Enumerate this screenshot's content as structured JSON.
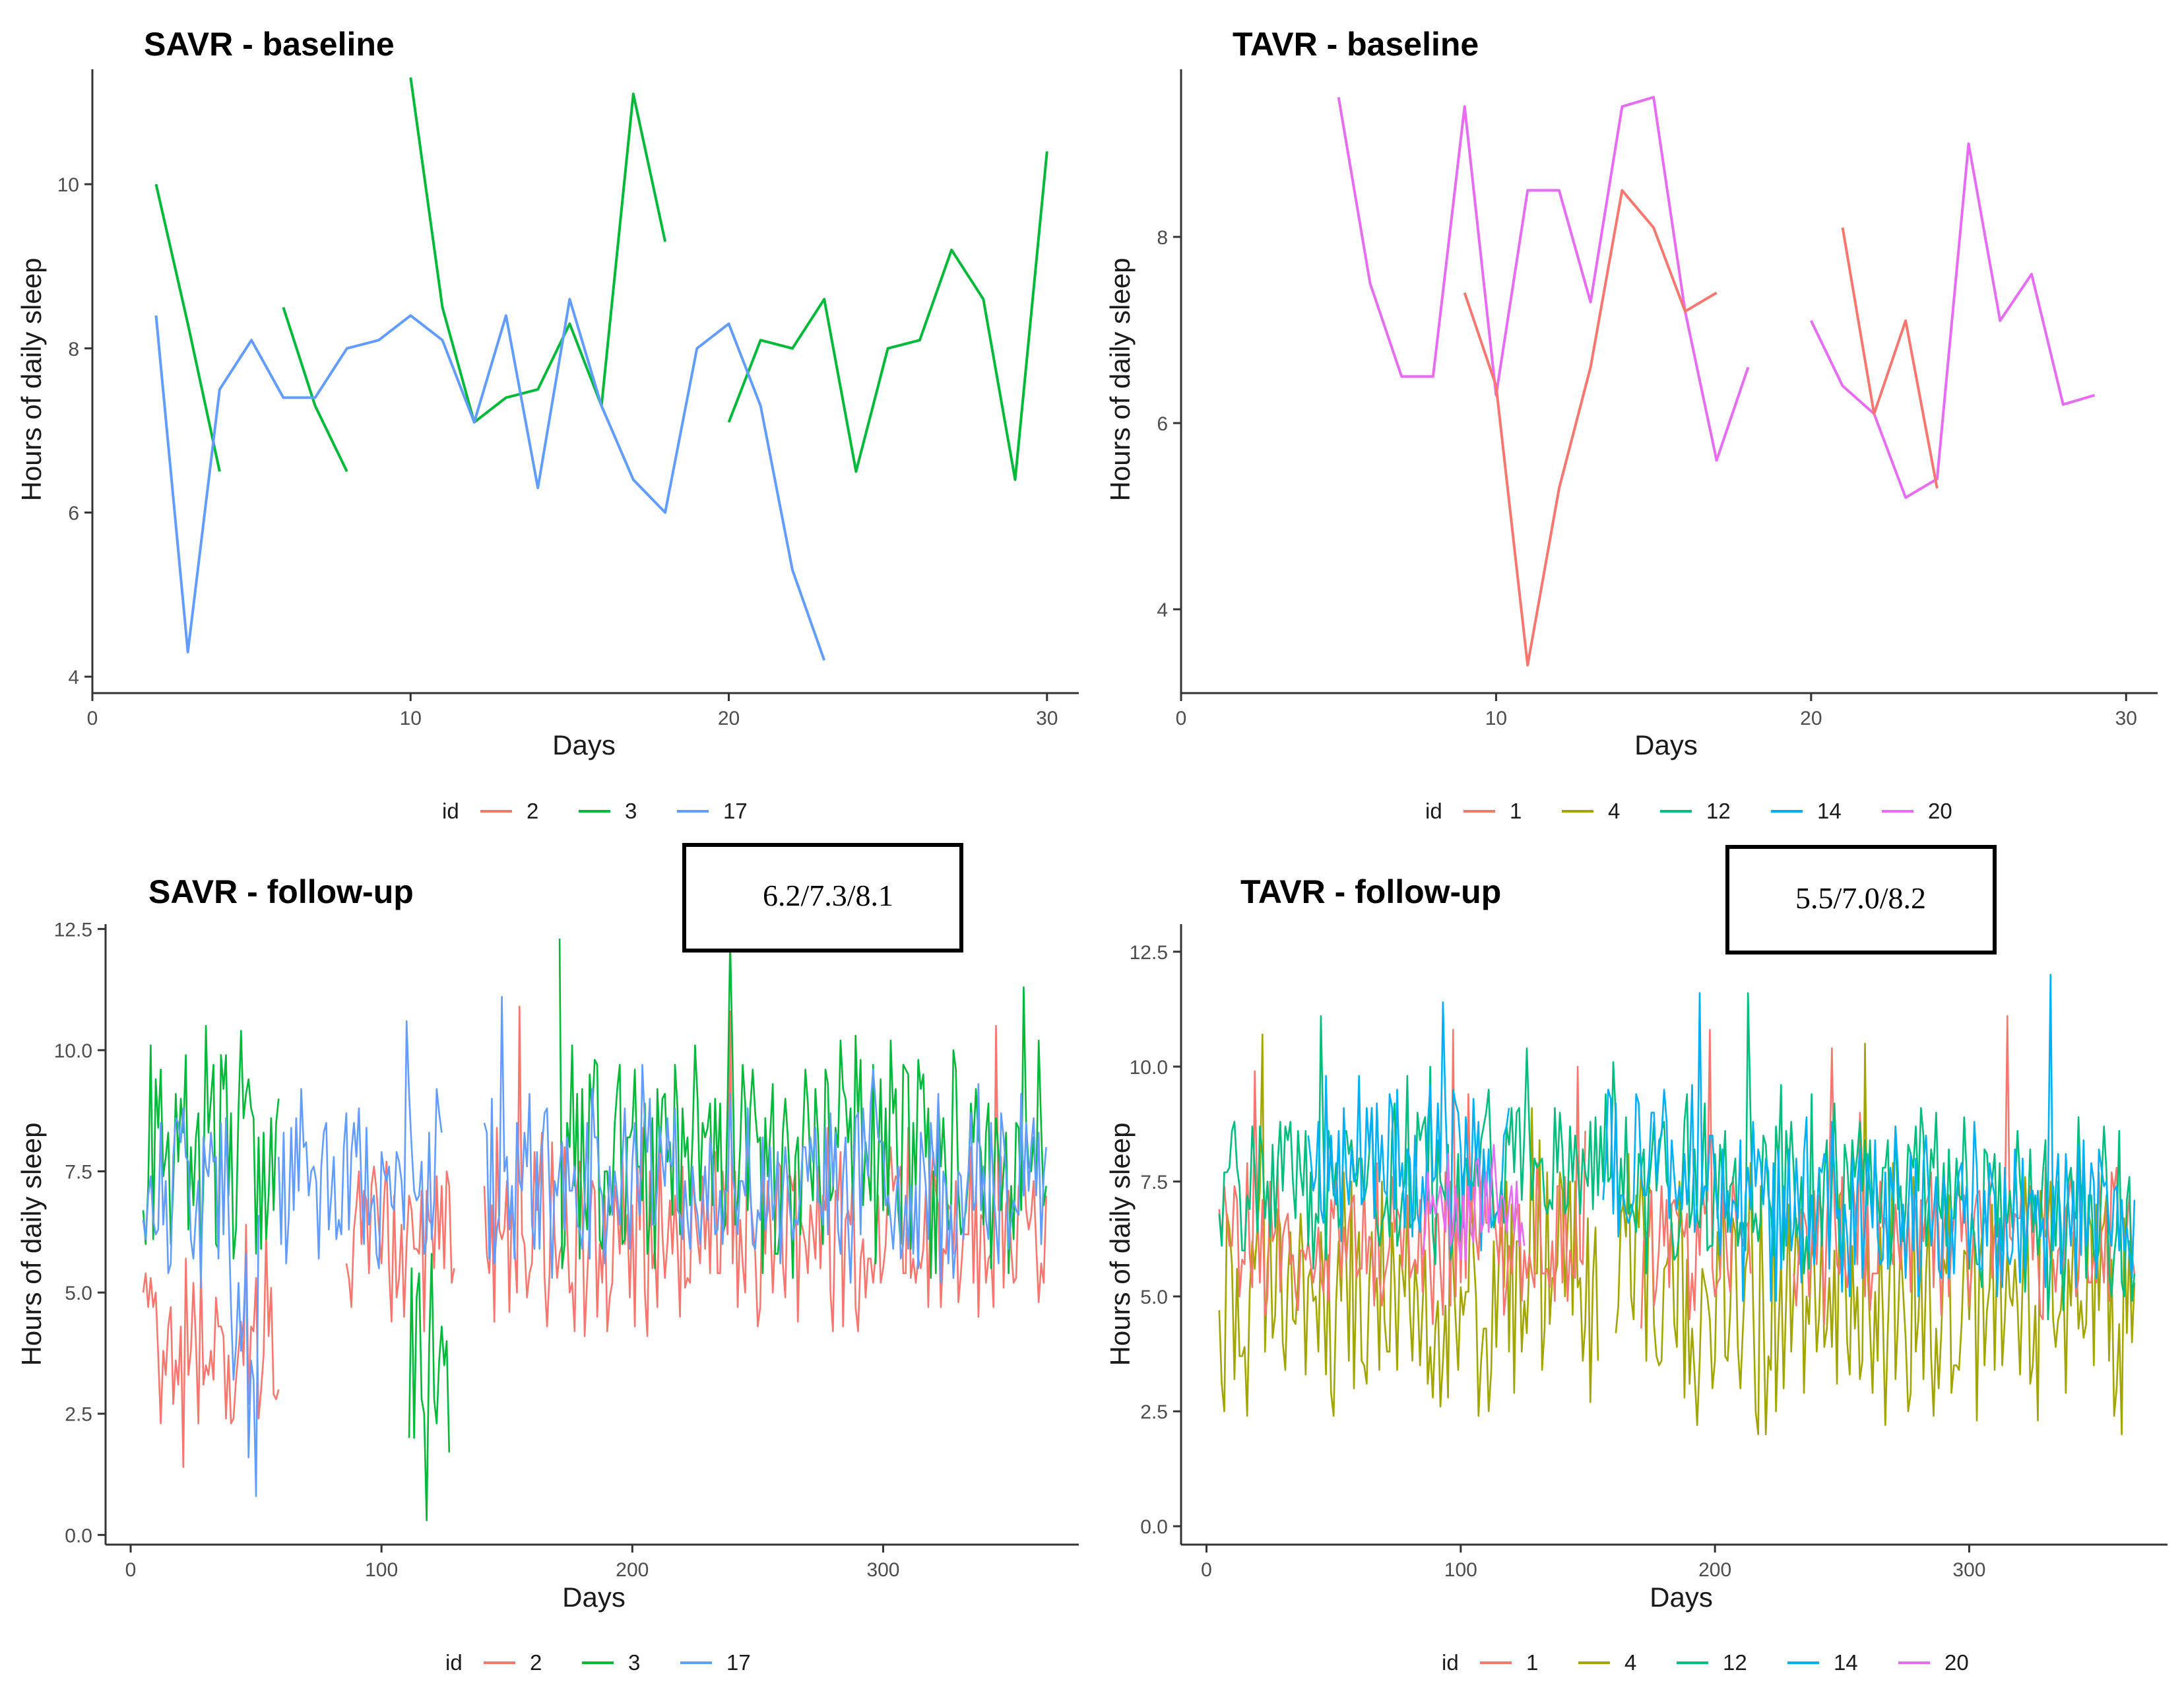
{
  "colors": {
    "id_1": "#F8766D",
    "id_2": "#F8766D",
    "id_3": "#00BA38",
    "id_4": "#A3A500",
    "id_12": "#00BF7D",
    "id_14": "#00B0F6",
    "id_17": "#619CFF",
    "id_20": "#E76BF3"
  },
  "chart_data": [
    {
      "type": "line",
      "title": "SAVR - baseline",
      "xlabel": "Days",
      "ylabel": "Hours of daily sleep",
      "xlim": [
        0,
        31
      ],
      "ylim": [
        3.8,
        11.4
      ],
      "xticks": [
        "0",
        "10",
        "20",
        "30"
      ],
      "yticks": [
        "4",
        "6",
        "8",
        "10"
      ],
      "legend": {
        "title": "id",
        "labels": [
          "2",
          "3",
          "17"
        ],
        "position": "bottom"
      },
      "series": [
        {
          "name": "3",
          "color": "#00BA38",
          "segments": [
            [
              [
                2,
                10.0
              ],
              [
                3,
                8.3
              ],
              [
                4,
                6.5
              ]
            ],
            [
              [
                6,
                8.5
              ],
              [
                7,
                7.3
              ],
              [
                8,
                6.5
              ]
            ],
            [
              [
                10,
                11.3
              ],
              [
                11,
                8.5
              ],
              [
                12,
                7.1
              ],
              [
                13,
                7.4
              ],
              [
                14,
                7.5
              ],
              [
                15,
                8.3
              ],
              [
                16,
                7.3
              ],
              [
                17,
                11.1
              ],
              [
                18,
                9.3
              ]
            ],
            [
              [
                20,
                7.1
              ],
              [
                21,
                8.1
              ],
              [
                22,
                8.0
              ],
              [
                23,
                8.6
              ],
              [
                24,
                6.5
              ],
              [
                25,
                8.0
              ],
              [
                26,
                8.1
              ],
              [
                27,
                9.2
              ],
              [
                28,
                8.6
              ],
              [
                29,
                6.4
              ],
              [
                30,
                10.4
              ]
            ]
          ]
        },
        {
          "name": "17",
          "color": "#619CFF",
          "segments": [
            [
              [
                2,
                8.4
              ],
              [
                3,
                4.3
              ],
              [
                4,
                7.5
              ],
              [
                5,
                8.1
              ],
              [
                6,
                7.4
              ],
              [
                7,
                7.4
              ],
              [
                8,
                8.0
              ],
              [
                9,
                8.1
              ],
              [
                10,
                8.4
              ],
              [
                11,
                8.1
              ],
              [
                12,
                7.1
              ],
              [
                13,
                8.4
              ],
              [
                14,
                6.3
              ],
              [
                15,
                8.6
              ],
              [
                16,
                7.3
              ],
              [
                17,
                6.4
              ],
              [
                18,
                6.0
              ],
              [
                19,
                8.0
              ],
              [
                20,
                8.3
              ],
              [
                21,
                7.3
              ],
              [
                22,
                5.3
              ],
              [
                23,
                4.2
              ]
            ]
          ]
        }
      ]
    },
    {
      "type": "line",
      "title": "TAVR - baseline",
      "xlabel": "Days",
      "ylabel": "Hours of daily sleep",
      "xlim": [
        0,
        31
      ],
      "ylim": [
        3.1,
        9.8
      ],
      "xticks": [
        "0",
        "10",
        "20",
        "30"
      ],
      "yticks": [
        "4",
        "6",
        "8"
      ],
      "legend": {
        "title": "id",
        "labels": [
          "1",
          "4",
          "12",
          "14",
          "20"
        ],
        "position": "bottom"
      },
      "series": [
        {
          "name": "20",
          "color": "#E76BF3",
          "segments": [
            [
              [
                5,
                9.5
              ],
              [
                6,
                7.5
              ],
              [
                7,
                6.5
              ],
              [
                8,
                6.5
              ],
              [
                9,
                9.4
              ],
              [
                10,
                6.3
              ],
              [
                11,
                8.5
              ],
              [
                12,
                8.5
              ],
              [
                13,
                7.3
              ],
              [
                14,
                9.4
              ],
              [
                15,
                9.5
              ],
              [
                16,
                7.2
              ],
              [
                17,
                5.6
              ],
              [
                18,
                6.6
              ]
            ],
            [
              [
                20,
                7.1
              ],
              [
                21,
                6.4
              ],
              [
                22,
                6.1
              ],
              [
                23,
                5.2
              ],
              [
                24,
                5.4
              ],
              [
                25,
                9.0
              ],
              [
                26,
                7.1
              ],
              [
                27,
                7.6
              ],
              [
                28,
                6.2
              ],
              [
                29,
                6.3
              ]
            ]
          ]
        },
        {
          "name": "1",
          "color": "#F8766D",
          "segments": [
            [
              [
                9,
                7.4
              ],
              [
                10,
                6.4
              ],
              [
                11,
                3.4
              ],
              [
                12,
                5.3
              ],
              [
                13,
                6.6
              ],
              [
                14,
                8.5
              ],
              [
                15,
                8.1
              ],
              [
                16,
                7.2
              ],
              [
                17,
                7.4
              ]
            ],
            [
              [
                21,
                8.1
              ],
              [
                22,
                6.1
              ],
              [
                23,
                7.1
              ],
              [
                24,
                5.3
              ]
            ]
          ]
        }
      ]
    },
    {
      "type": "line",
      "title": "SAVR - follow-up",
      "xlabel": "Days",
      "ylabel": "Hours of daily sleep",
      "xlim": [
        -10,
        378
      ],
      "ylim": [
        -0.2,
        12.6
      ],
      "xticks": [
        "0",
        "100",
        "200",
        "300"
      ],
      "yticks": [
        "0.0",
        "2.5",
        "5.0",
        "7.5",
        "10.0",
        "12.5"
      ],
      "legend": {
        "title": "id",
        "labels": [
          "2",
          "3",
          "17"
        ],
        "position": "bottom"
      },
      "annotation": "6.2/7.3/8.1",
      "series": [
        {
          "name": "2",
          "color": "#F8766D",
          "range": [
            5,
            365
          ],
          "base": 6.2,
          "amp": 1.7,
          "seed": 21,
          "dips": [
            [
              10,
              60,
              -3.5
            ]
          ],
          "gaps": [
            [
              60,
              85
            ],
            [
              130,
              140
            ]
          ]
        },
        {
          "name": "3",
          "color": "#00BA38",
          "range": [
            5,
            365
          ],
          "base": 7.8,
          "amp": 2.0,
          "seed": 33,
          "dips": [
            [
              110,
              128,
              -6.0
            ]
          ],
          "gaps": [
            [
              60,
              110
            ],
            [
              128,
              170
            ]
          ]
        },
        {
          "name": "17",
          "color": "#619CFF",
          "range": [
            5,
            365
          ],
          "base": 7.2,
          "amp": 1.6,
          "seed": 17,
          "dips": [
            [
              40,
              50,
              -5.5
            ]
          ],
          "gaps": [
            [
              52,
              58
            ],
            [
              125,
              140
            ]
          ]
        }
      ]
    },
    {
      "type": "line",
      "title": "TAVR - follow-up",
      "xlabel": "Days",
      "ylabel": "Hours of daily sleep",
      "xlim": [
        -10,
        378
      ],
      "ylim": [
        -0.4,
        13.1
      ],
      "xticks": [
        "0",
        "100",
        "200",
        "300"
      ],
      "yticks": [
        "0.0",
        "2.5",
        "5.0",
        "7.5",
        "10.0",
        "12.5"
      ],
      "legend": {
        "title": "id",
        "labels": [
          "1",
          "4",
          "12",
          "14",
          "20"
        ],
        "position": "bottom"
      },
      "annotation": "5.5/7.0/8.2",
      "series": [
        {
          "name": "4",
          "color": "#A3A500",
          "range": [
            5,
            365
          ],
          "base": 5.0,
          "amp": 2.3,
          "seed": 4,
          "dips": [],
          "gaps": [
            [
              155,
              160
            ]
          ]
        },
        {
          "name": "1",
          "color": "#F8766D",
          "range": [
            5,
            365
          ],
          "base": 6.2,
          "amp": 1.4,
          "seed": 1,
          "dips": [],
          "gaps": [
            [
              150,
              170
            ],
            [
              215,
              230
            ]
          ]
        },
        {
          "name": "12",
          "color": "#00BF7D",
          "range": [
            5,
            365
          ],
          "base": 7.6,
          "amp": 1.6,
          "seed": 12,
          "dips": [
            [
              300,
              365,
              -1.3
            ]
          ],
          "gaps": []
        },
        {
          "name": "14",
          "color": "#00B0F6",
          "range": [
            40,
            365
          ],
          "base": 8.0,
          "amp": 1.5,
          "seed": 14,
          "dips": [
            [
              200,
              365,
              -1.6
            ]
          ],
          "gaps": [
            [
              120,
              155
            ]
          ]
        },
        {
          "name": "20",
          "color": "#E76BF3",
          "range": [
            85,
            125
          ],
          "base": 7.0,
          "amp": 1.0,
          "seed": 20,
          "dips": [],
          "gaps": []
        }
      ]
    }
  ]
}
